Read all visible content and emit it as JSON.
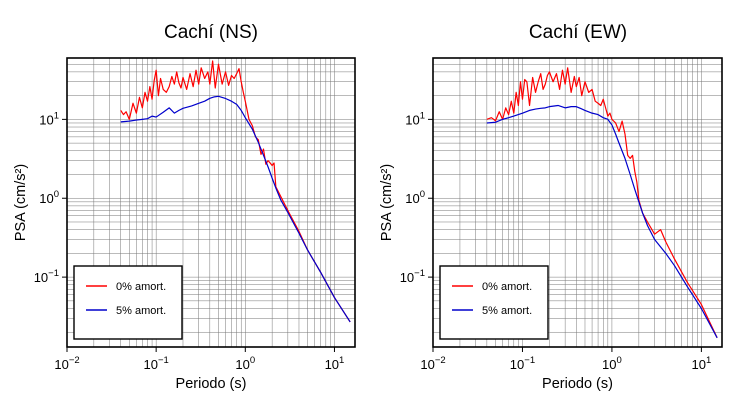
{
  "chart_data": [
    {
      "type": "line",
      "title": "Cachí (NS)",
      "xlabel": "Periodo (s)",
      "ylabel": "PSA (cm/s²)",
      "xscale": "log",
      "yscale": "log",
      "xlim": [
        0.01,
        17
      ],
      "ylim": [
        0.013,
        60
      ],
      "xticks": [
        0.01,
        0.1,
        1,
        10
      ],
      "xtick_labels": [
        [
          "10",
          "−2"
        ],
        [
          "10",
          "−1"
        ],
        [
          "10",
          "0"
        ],
        [
          "10",
          "1"
        ]
      ],
      "yticks": [
        0.1,
        1,
        10
      ],
      "ytick_labels": [
        [
          "10",
          "−1"
        ],
        [
          "10",
          "0"
        ],
        [
          "10",
          "1"
        ]
      ],
      "grid": true,
      "legend": "bottom-left",
      "series": [
        {
          "name": "0% amort.",
          "color": "#ff0000",
          "x": [
            0.04,
            0.043,
            0.046,
            0.05,
            0.055,
            0.06,
            0.065,
            0.07,
            0.075,
            0.08,
            0.085,
            0.09,
            0.095,
            0.1,
            0.106,
            0.112,
            0.12,
            0.13,
            0.14,
            0.15,
            0.16,
            0.17,
            0.18,
            0.19,
            0.2,
            0.22,
            0.24,
            0.26,
            0.28,
            0.3,
            0.32,
            0.35,
            0.38,
            0.4,
            0.43,
            0.46,
            0.5,
            0.55,
            0.6,
            0.65,
            0.7,
            0.75,
            0.8,
            0.85,
            0.9,
            0.95,
            1.0,
            1.1,
            1.2,
            1.3,
            1.4,
            1.5,
            1.6,
            1.7,
            1.8,
            1.9,
            2.0,
            2.1,
            2.2,
            2.5,
            3.0,
            4.0,
            5.0,
            7.0,
            10.0,
            15.0
          ],
          "y": [
            13,
            11.5,
            12.5,
            10,
            16,
            12,
            19,
            14,
            22,
            17,
            26,
            18,
            31,
            42,
            20,
            33,
            24,
            22,
            26,
            35,
            28,
            40,
            29,
            25,
            34,
            24,
            38,
            26,
            42,
            28,
            45,
            33,
            40,
            28,
            55,
            25,
            50,
            28,
            40,
            27,
            36,
            33,
            38,
            44,
            30,
            22,
            17,
            10,
            8.3,
            6,
            5.5,
            3.6,
            4.2,
            2.7,
            3.0,
            2.8,
            2.6,
            2.8,
            1.4,
            1.05,
            0.7,
            0.38,
            0.22,
            0.115,
            0.055,
            0.027
          ]
        },
        {
          "name": "5% amort.",
          "color": "#0000cc",
          "x": [
            0.04,
            0.05,
            0.06,
            0.07,
            0.08,
            0.09,
            0.1,
            0.12,
            0.14,
            0.16,
            0.18,
            0.2,
            0.25,
            0.3,
            0.35,
            0.4,
            0.45,
            0.5,
            0.55,
            0.6,
            0.7,
            0.8,
            0.9,
            1.0,
            1.2,
            1.4,
            1.6,
            1.8,
            2.0,
            2.2,
            2.5,
            3.0,
            4.0,
            5.0,
            7.0,
            10.0,
            15.0
          ],
          "y": [
            9.3,
            9.5,
            9.8,
            10,
            10.2,
            11,
            10.7,
            12.3,
            14,
            12,
            13,
            13.8,
            14.8,
            16,
            17,
            18.5,
            19.3,
            19.6,
            19,
            18.4,
            17,
            15.5,
            13,
            10.5,
            7.5,
            5.1,
            3.5,
            2.5,
            1.8,
            1.35,
            0.95,
            0.66,
            0.36,
            0.22,
            0.115,
            0.055,
            0.027
          ]
        }
      ]
    },
    {
      "type": "line",
      "title": "Cachí (EW)",
      "xlabel": "Periodo (s)",
      "ylabel": "PSA (cm/s²)",
      "xscale": "log",
      "yscale": "log",
      "xlim": [
        0.01,
        17
      ],
      "ylim": [
        0.013,
        60
      ],
      "xticks": [
        0.01,
        0.1,
        1,
        10
      ],
      "xtick_labels": [
        [
          "10",
          "−2"
        ],
        [
          "10",
          "−1"
        ],
        [
          "10",
          "0"
        ],
        [
          "10",
          "1"
        ]
      ],
      "yticks": [
        0.1,
        1,
        10
      ],
      "ytick_labels": [
        [
          "10",
          "−1"
        ],
        [
          "10",
          "0"
        ],
        [
          "10",
          "1"
        ]
      ],
      "grid": true,
      "legend": "bottom-left",
      "series": [
        {
          "name": "0% amort.",
          "color": "#ff0000",
          "x": [
            0.04,
            0.045,
            0.05,
            0.055,
            0.06,
            0.065,
            0.07,
            0.075,
            0.08,
            0.085,
            0.09,
            0.095,
            0.1,
            0.106,
            0.112,
            0.12,
            0.13,
            0.14,
            0.15,
            0.16,
            0.17,
            0.18,
            0.19,
            0.2,
            0.22,
            0.24,
            0.26,
            0.28,
            0.3,
            0.32,
            0.35,
            0.38,
            0.4,
            0.43,
            0.46,
            0.5,
            0.55,
            0.6,
            0.65,
            0.7,
            0.75,
            0.8,
            0.85,
            0.9,
            0.95,
            1.0,
            1.1,
            1.2,
            1.3,
            1.4,
            1.5,
            1.6,
            1.7,
            1.8,
            1.9,
            2.0,
            2.2,
            2.5,
            3.0,
            3.5,
            4.0,
            5.0,
            7.0,
            10.0,
            15.0
          ],
          "y": [
            10,
            10.5,
            9.6,
            12.5,
            10,
            14,
            11.5,
            17,
            12,
            22,
            15,
            30,
            18,
            32,
            30,
            15,
            34,
            22,
            30,
            38,
            24,
            28,
            36,
            40,
            30,
            38,
            24,
            42,
            28,
            45,
            22,
            35,
            26,
            34,
            20,
            30,
            22,
            24,
            17,
            16,
            15,
            18,
            14,
            11,
            12,
            10,
            9,
            7,
            9.5,
            6.5,
            3.5,
            3.2,
            3.5,
            2.2,
            1.6,
            0.95,
            0.65,
            0.5,
            0.35,
            0.4,
            0.28,
            0.17,
            0.085,
            0.045,
            0.017
          ]
        },
        {
          "name": "5% amort.",
          "color": "#0000cc",
          "x": [
            0.04,
            0.05,
            0.06,
            0.07,
            0.08,
            0.09,
            0.1,
            0.12,
            0.14,
            0.16,
            0.18,
            0.2,
            0.25,
            0.3,
            0.35,
            0.4,
            0.45,
            0.5,
            0.6,
            0.7,
            0.8,
            0.9,
            1.0,
            1.1,
            1.2,
            1.4,
            1.6,
            1.8,
            2.0,
            2.2,
            2.5,
            3.0,
            4.0,
            5.0,
            7.0,
            10.0,
            15.0
          ],
          "y": [
            9,
            9.2,
            10,
            10.5,
            11,
            11.5,
            12,
            13,
            13.5,
            13.8,
            14,
            14.5,
            15,
            14,
            14.5,
            14.5,
            13.7,
            13,
            12,
            11.5,
            10.5,
            10,
            8.5,
            6.5,
            5,
            3.2,
            2.0,
            1.3,
            0.9,
            0.65,
            0.45,
            0.3,
            0.2,
            0.14,
            0.075,
            0.04,
            0.017
          ]
        }
      ]
    }
  ]
}
